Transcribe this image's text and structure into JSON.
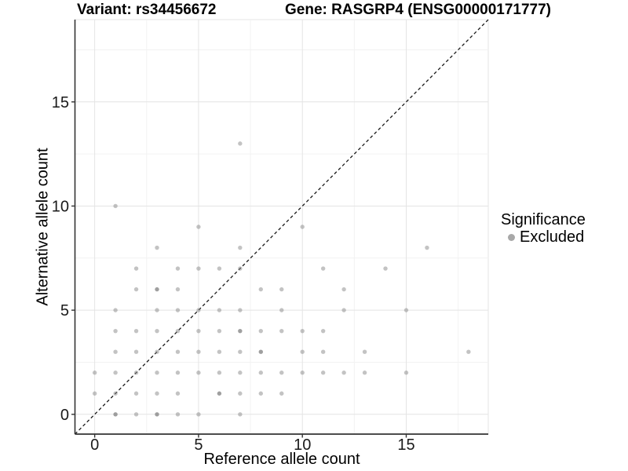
{
  "titles": {
    "variant": "Variant: rs34456672",
    "gene": "Gene: RASGRP4 (ENSG00000171777)"
  },
  "chart_data": {
    "type": "scatter",
    "title": "Variant: rs34456672 — Gene: RASGRP4 (ENSG00000171777)",
    "xlabel": "Reference allele count",
    "ylabel": "Alternative allele count",
    "xlim": [
      -0.95,
      18.95
    ],
    "ylim": [
      -0.95,
      18.95
    ],
    "x_ticks": [
      0,
      5,
      10,
      15
    ],
    "y_ticks": [
      0,
      5,
      10,
      15
    ],
    "x_minor_gridlines": [
      2.5,
      7.5,
      12.5,
      17.5
    ],
    "y_minor_gridlines": [
      2.5,
      7.5,
      12.5,
      17.5
    ],
    "grid": "major+minor",
    "legend": {
      "position": "right",
      "title": "Significance",
      "items": [
        {
          "label": "Excluded",
          "marker": "circle",
          "color": "#999999"
        }
      ]
    },
    "reference_line": {
      "style": "dashed",
      "slope": 1,
      "intercept": 0,
      "color": "#1a1a1a"
    },
    "series": [
      {
        "name": "Excluded",
        "marker": "circle",
        "color": "#878787",
        "opacity": 0.5,
        "points": [
          [
            1,
            0
          ],
          [
            2,
            0
          ],
          [
            3,
            0
          ],
          [
            4,
            0
          ],
          [
            5,
            0
          ],
          [
            7,
            0
          ],
          [
            0,
            1
          ],
          [
            1,
            1
          ],
          [
            2,
            1
          ],
          [
            3,
            1
          ],
          [
            4,
            1
          ],
          [
            6,
            1
          ],
          [
            7,
            1
          ],
          [
            8,
            1
          ],
          [
            9,
            1
          ],
          [
            0,
            2
          ],
          [
            1,
            2
          ],
          [
            2,
            2
          ],
          [
            3,
            2
          ],
          [
            4,
            2
          ],
          [
            5,
            2
          ],
          [
            6,
            2
          ],
          [
            7,
            2
          ],
          [
            8,
            2
          ],
          [
            9,
            2
          ],
          [
            10,
            2
          ],
          [
            11,
            2
          ],
          [
            12,
            2
          ],
          [
            13,
            2
          ],
          [
            15,
            2
          ],
          [
            1,
            3
          ],
          [
            2,
            3
          ],
          [
            3,
            3
          ],
          [
            4,
            3
          ],
          [
            5,
            3
          ],
          [
            6,
            3
          ],
          [
            7,
            3
          ],
          [
            8,
            3
          ],
          [
            10,
            3
          ],
          [
            11,
            3
          ],
          [
            13,
            3
          ],
          [
            18,
            3
          ],
          [
            1,
            4
          ],
          [
            2,
            4
          ],
          [
            3,
            4
          ],
          [
            4,
            4
          ],
          [
            5,
            4
          ],
          [
            6,
            4
          ],
          [
            7,
            4
          ],
          [
            8,
            4
          ],
          [
            9,
            4
          ],
          [
            10,
            4
          ],
          [
            11,
            4
          ],
          [
            1,
            5
          ],
          [
            3,
            5
          ],
          [
            4,
            5
          ],
          [
            5,
            5
          ],
          [
            6,
            5
          ],
          [
            7,
            5
          ],
          [
            9,
            5
          ],
          [
            12,
            5
          ],
          [
            15,
            5
          ],
          [
            2,
            6
          ],
          [
            3,
            6
          ],
          [
            4,
            6
          ],
          [
            8,
            6
          ],
          [
            9,
            6
          ],
          [
            12,
            6
          ],
          [
            2,
            7
          ],
          [
            4,
            7
          ],
          [
            5,
            7
          ],
          [
            6,
            7
          ],
          [
            7,
            7
          ],
          [
            11,
            7
          ],
          [
            14,
            7
          ],
          [
            3,
            8
          ],
          [
            7,
            8
          ],
          [
            16,
            8
          ],
          [
            5,
            9
          ],
          [
            10,
            9
          ],
          [
            1,
            10
          ],
          [
            7,
            13
          ]
        ]
      }
    ],
    "overplotted_points": [
      [
        1,
        0
      ],
      [
        3,
        0
      ],
      [
        6,
        1
      ],
      [
        8,
        3
      ],
      [
        7,
        4
      ],
      [
        3,
        6
      ]
    ]
  },
  "colors": {
    "background": "#ffffff",
    "grid_major": "#e4e4e4",
    "grid_minor": "#f2f2f2",
    "axis_line": "#333333",
    "point": "#878787",
    "text": "#1a1a1a"
  }
}
